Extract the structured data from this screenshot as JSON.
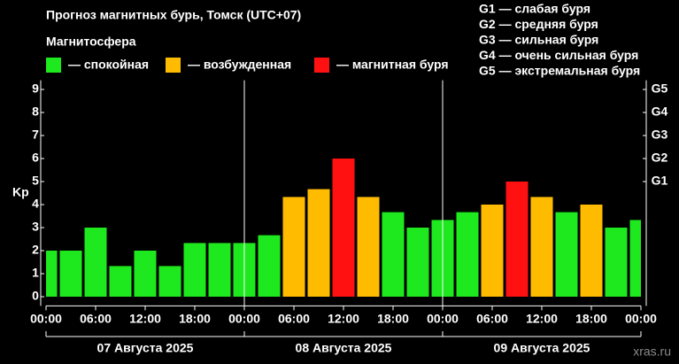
{
  "chart_data": {
    "type": "bar",
    "title": "Прогноз магнитных бурь, Томск (UTC+07)",
    "legend_title": "Магнитосфера",
    "legend": [
      {
        "name": "— спокойная",
        "color": "#1ee81e"
      },
      {
        "name": "— возбужденная",
        "color": "#ffbb00"
      },
      {
        "name": "— магнитная буря",
        "color": "#ff1111"
      }
    ],
    "g_scale": [
      "G1 — слабая буря",
      "G2 — средняя буря",
      "G3 — сильная буря",
      "G4 — очень сильная буря",
      "G5 — экстремальная буря"
    ],
    "y_label": "Kp",
    "x": [
      0,
      3,
      6,
      9,
      12,
      15,
      18,
      21,
      24,
      27,
      30,
      33,
      36,
      39,
      42,
      45,
      48,
      51,
      54,
      57,
      60,
      63,
      66,
      69,
      72
    ],
    "values": [
      2,
      2,
      3,
      1.33,
      2,
      1.33,
      2.33,
      2.33,
      2.33,
      2.67,
      4.33,
      4.67,
      6,
      4.33,
      3.67,
      3,
      3.33,
      3.67,
      4,
      5,
      4.33,
      3.67,
      4,
      3,
      3.33
    ],
    "colors": [
      "#1ee81e",
      "#1ee81e",
      "#1ee81e",
      "#1ee81e",
      "#1ee81e",
      "#1ee81e",
      "#1ee81e",
      "#1ee81e",
      "#1ee81e",
      "#1ee81e",
      "#ffbb00",
      "#ffbb00",
      "#ff1111",
      "#ffbb00",
      "#1ee81e",
      "#1ee81e",
      "#1ee81e",
      "#1ee81e",
      "#ffbb00",
      "#ff1111",
      "#ffbb00",
      "#1ee81e",
      "#ffbb00",
      "#1ee81e",
      "#1ee81e"
    ],
    "bar_width": 3,
    "xlim": [
      0,
      72
    ],
    "xticks": [
      {
        "value": 0,
        "label": "00:00"
      },
      {
        "value": 6,
        "label": "06:00"
      },
      {
        "value": 12,
        "label": "12:00"
      },
      {
        "value": 18,
        "label": "18:00"
      },
      {
        "value": 24,
        "label": "00:00"
      },
      {
        "value": 30,
        "label": "06:00"
      },
      {
        "value": 36,
        "label": "12:00"
      },
      {
        "value": 42,
        "label": "18:00"
      },
      {
        "value": 48,
        "label": "00:00"
      },
      {
        "value": 54,
        "label": "06:00"
      },
      {
        "value": 60,
        "label": "12:00"
      },
      {
        "value": 66,
        "label": "18:00"
      },
      {
        "value": 72,
        "label": "00:00"
      }
    ],
    "days": [
      "07 Августа 2025",
      "08 Августа 2025",
      "09 Августа 2025"
    ],
    "ylim": [
      -0.4,
      9.4
    ],
    "yticks": [
      0,
      1,
      2,
      3,
      4,
      5,
      6,
      7,
      8,
      9
    ],
    "y2ticks": [
      {
        "value": 5,
        "label": "G1"
      },
      {
        "value": 6,
        "label": "G2"
      },
      {
        "value": 7,
        "label": "G3"
      },
      {
        "value": 8,
        "label": "G4"
      },
      {
        "value": 9,
        "label": "G5"
      }
    ],
    "watermark": "xras.ru"
  }
}
